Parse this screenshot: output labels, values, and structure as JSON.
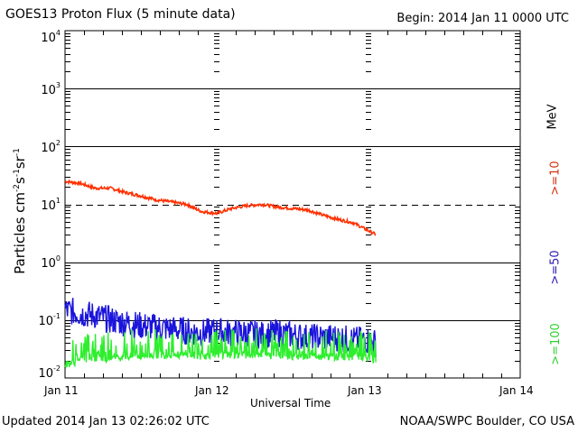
{
  "chart_data": {
    "type": "line",
    "title": "GOES13 Proton Flux (5 minute data)",
    "begin": "Begin: 2014 Jan 11 0000 UTC",
    "xlabel": "Universal Time",
    "ylabel_parts": [
      "Particles cm",
      "-2",
      "s",
      "-1",
      "sr",
      "-1"
    ],
    "yscale": "log",
    "ylim": [
      0.01,
      10000
    ],
    "xlim_days": [
      0,
      3
    ],
    "x_tick_labels": [
      "Jan 11",
      "Jan 12",
      "Jan 13",
      "Jan 14"
    ],
    "y_tick_labels": [
      {
        "base": "10",
        "exp": "4"
      },
      {
        "base": "10",
        "exp": "3"
      },
      {
        "base": "10",
        "exp": "2"
      },
      {
        "base": "10",
        "exp": "1"
      },
      {
        "base": "10",
        "exp": "0"
      },
      {
        "base": "10",
        "exp": "-1"
      },
      {
        "base": "10",
        "exp": "-2"
      }
    ],
    "threshold_line": 10,
    "legend_unit": "MeV",
    "series": [
      {
        "name": ">=10",
        "color": "#ff3000",
        "x": [
          0,
          0.1,
          0.2,
          0.3,
          0.4,
          0.5,
          0.6,
          0.7,
          0.8,
          0.9,
          1.0,
          1.1,
          1.2,
          1.3,
          1.4,
          1.5,
          1.6,
          1.7,
          1.8,
          1.9,
          2.0,
          2.05
        ],
        "y": [
          25,
          23,
          19,
          19,
          16,
          14,
          12,
          11,
          10,
          7.5,
          7,
          8.5,
          9.5,
          10,
          9,
          8.5,
          8,
          6.5,
          5.5,
          4.8,
          3.5,
          3
        ]
      },
      {
        "name": ">=50",
        "color": "#1a14dc",
        "x": [
          0,
          0.1,
          0.2,
          0.3,
          0.4,
          0.5,
          0.6,
          0.7,
          0.8,
          0.9,
          1.0,
          1.1,
          1.2,
          1.3,
          1.4,
          1.5,
          1.6,
          1.7,
          1.8,
          1.9,
          2.0,
          2.05
        ],
        "y": [
          0.15,
          0.13,
          0.12,
          0.1,
          0.09,
          0.08,
          0.075,
          0.07,
          0.065,
          0.06,
          0.065,
          0.06,
          0.06,
          0.055,
          0.06,
          0.055,
          0.05,
          0.05,
          0.05,
          0.045,
          0.045,
          0.04
        ]
      },
      {
        "name": ">=100",
        "color": "#2eee2e",
        "x": [
          0,
          0.1,
          0.2,
          0.3,
          0.4,
          0.5,
          0.6,
          0.7,
          0.8,
          0.9,
          1.0,
          1.1,
          1.2,
          1.3,
          1.4,
          1.5,
          1.6,
          1.7,
          1.8,
          1.9,
          2.0,
          2.05
        ],
        "y": [
          0.017,
          0.02,
          0.022,
          0.022,
          0.023,
          0.024,
          0.025,
          0.025,
          0.025,
          0.024,
          0.024,
          0.025,
          0.025,
          0.025,
          0.024,
          0.024,
          0.024,
          0.023,
          0.023,
          0.023,
          0.022,
          0.02
        ]
      }
    ]
  },
  "footer": {
    "updated": "Updated 2014 Jan 13 02:26:02 UTC",
    "credit": "NOAA/SWPC Boulder, CO USA"
  }
}
